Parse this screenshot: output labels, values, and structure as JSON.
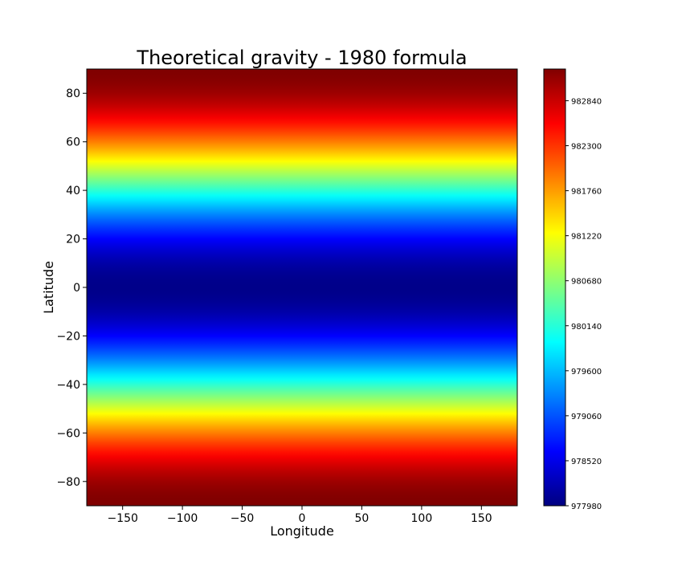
{
  "chart_data": {
    "type": "heatmap",
    "title": "Theoretical gravity - 1980 formula",
    "xlabel": "Longitude",
    "ylabel": "Latitude",
    "xlim": [
      -180,
      180
    ],
    "ylim": [
      -90,
      90
    ],
    "x_ticks": [
      -150,
      -100,
      -50,
      0,
      50,
      100,
      150
    ],
    "x_tick_labels": [
      "−150",
      "−100",
      "−50",
      "0",
      "50",
      "100",
      "150"
    ],
    "y_ticks": [
      80,
      60,
      40,
      20,
      0,
      -20,
      -40,
      -60,
      -80
    ],
    "y_tick_labels": [
      "80",
      "60",
      "40",
      "20",
      "0",
      "−20",
      "−40",
      "−60",
      "−80"
    ],
    "colormap": "jet",
    "value_range": [
      977980,
      983220
    ],
    "colorbar_ticks": [
      977980,
      978520,
      979060,
      979600,
      980140,
      980680,
      981220,
      981760,
      982300,
      982840
    ],
    "colorbar_tick_labels": [
      "977980",
      "978520",
      "979060",
      "979600",
      "980140",
      "980680",
      "981220",
      "981760",
      "982300",
      "982840"
    ],
    "field": "normal gravity varies with latitude only (minimum at equator, maximum at poles)",
    "sample_latitudes": [
      -90,
      -80,
      -60,
      -40,
      -20,
      0,
      20,
      40,
      60,
      80,
      90
    ],
    "sample_values": [
      983218,
      983061,
      981918,
      980170,
      978636,
      978033,
      978636,
      980170,
      981918,
      983061,
      983218
    ],
    "grid": false,
    "legend": "colorbar-right"
  }
}
